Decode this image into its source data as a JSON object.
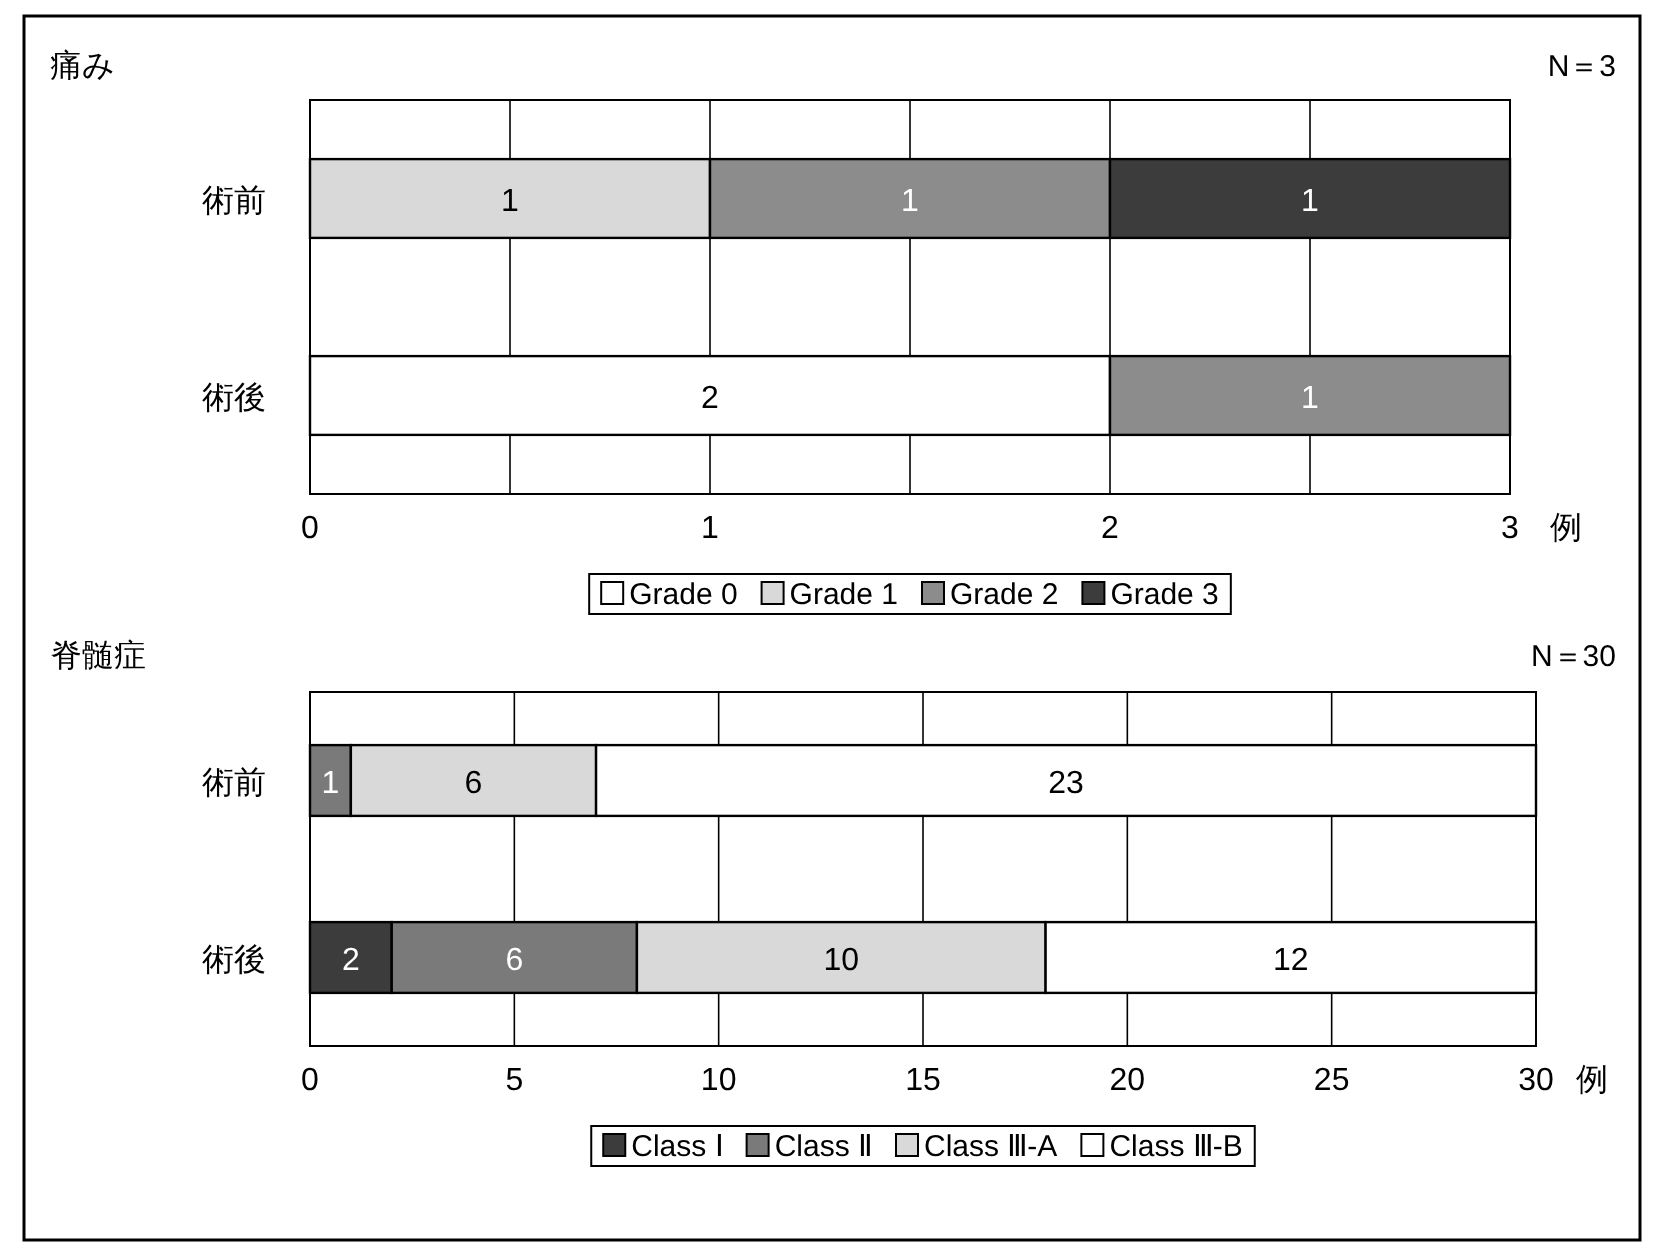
{
  "chart_data": [
    {
      "type": "bar",
      "orientation": "horizontal",
      "stacked": true,
      "title": "痛み",
      "annotations": [
        "N＝3"
      ],
      "xlabel": "例",
      "categories": [
        "術前",
        "術後"
      ],
      "xlim": [
        0,
        3
      ],
      "xticks": [
        0,
        {
          "value": 0.5,
          "label": null
        },
        1,
        {
          "value": 1.5,
          "label": null
        },
        2,
        {
          "value": 2.5,
          "label": null
        },
        3
      ],
      "grid": "x",
      "legend": "bottom",
      "series": [
        {
          "name": "Grade 0",
          "color": "#ffffff",
          "values": [
            0,
            2
          ],
          "value_labels": [
            null,
            "2"
          ]
        },
        {
          "name": "Grade 1",
          "color": "#d9d9d9",
          "values": [
            1,
            0
          ],
          "value_labels": [
            "1",
            null
          ]
        },
        {
          "name": "Grade 2",
          "color": "#8c8c8c",
          "values": [
            1,
            1
          ],
          "value_labels": [
            "1",
            "1"
          ]
        },
        {
          "name": "Grade 3",
          "color": "#3c3c3c",
          "values": [
            1,
            0
          ],
          "value_labels": [
            "1",
            null
          ]
        }
      ]
    },
    {
      "type": "bar",
      "orientation": "horizontal",
      "stacked": true,
      "title": "脊髄症",
      "annotations": [
        "N＝30"
      ],
      "xlabel": "例",
      "categories": [
        "術前",
        "術後"
      ],
      "xlim": [
        0,
        30
      ],
      "xticks": [
        0,
        5,
        10,
        15,
        20,
        25,
        30
      ],
      "grid": "x",
      "legend": "bottom",
      "series": [
        {
          "name": "Class Ⅰ",
          "color": "#3c3c3c",
          "values": [
            0,
            2
          ],
          "value_labels": [
            null,
            "2"
          ]
        },
        {
          "name": "Class Ⅱ",
          "color": "#7a7a7a",
          "values": [
            1,
            6
          ],
          "value_labels": [
            "1",
            "6"
          ]
        },
        {
          "name": "Class Ⅲ-A",
          "color": "#d9d9d9",
          "values": [
            6,
            10
          ],
          "value_labels": [
            "6",
            "10"
          ]
        },
        {
          "name": "Class Ⅲ-B",
          "color": "#ffffff",
          "values": [
            23,
            12
          ],
          "value_labels": [
            "23",
            "12"
          ]
        }
      ]
    }
  ]
}
